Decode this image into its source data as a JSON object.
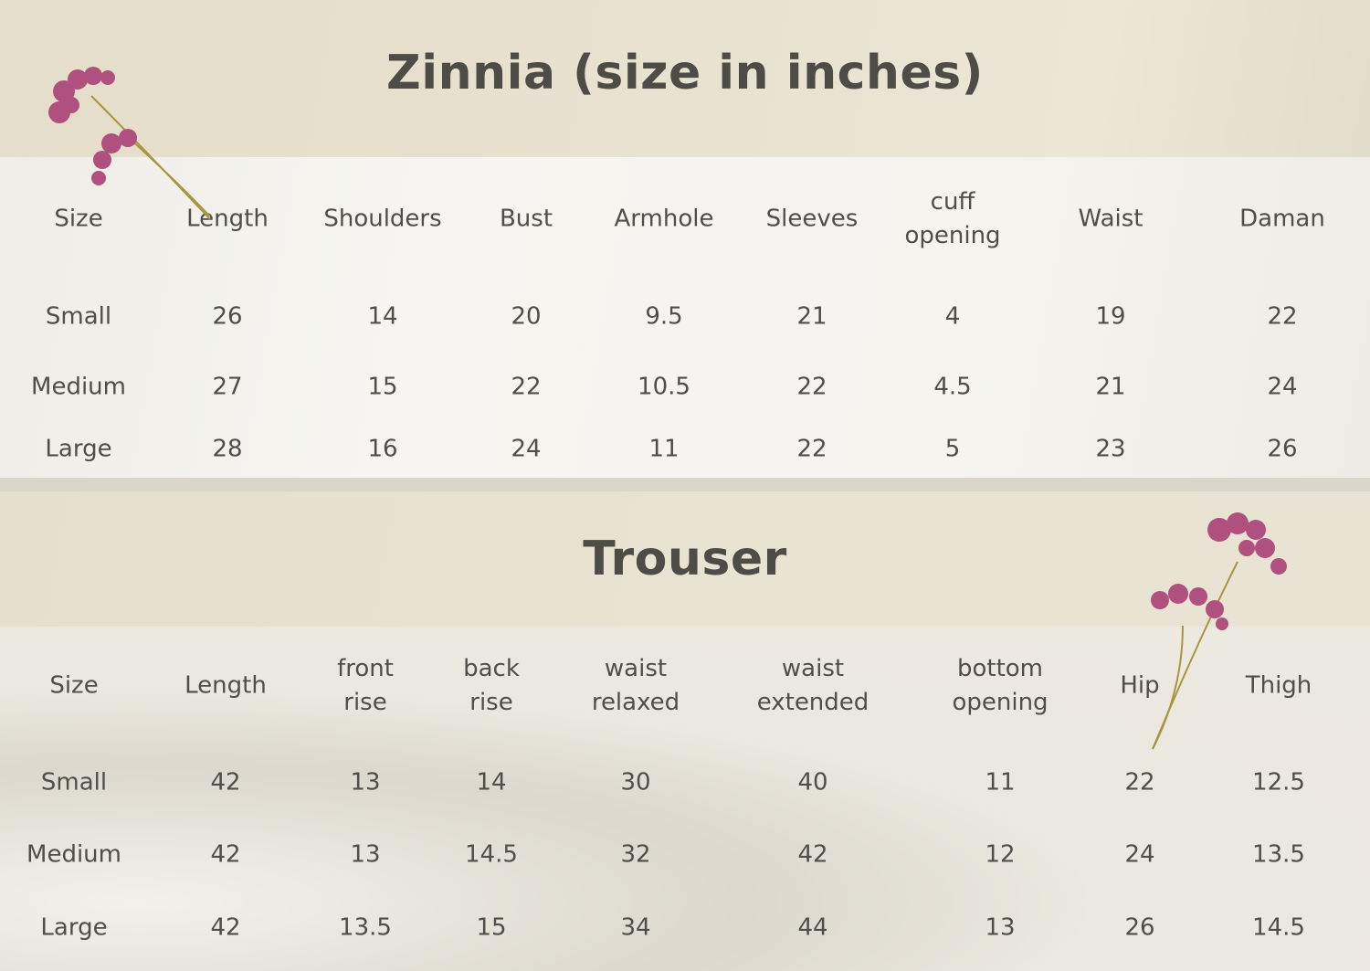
{
  "top_table": {
    "title": "Zinnia (size in inches)",
    "headers": [
      "Size",
      "Length",
      "Shoulders",
      "Bust",
      "Armhole",
      "Sleeves",
      "cuff\nopening",
      "Waist",
      "Daman"
    ],
    "rows": [
      [
        "Small",
        "26",
        "14",
        "20",
        "9.5",
        "21",
        "4",
        "19",
        "22"
      ],
      [
        "Medium",
        "27",
        "15",
        "22",
        "10.5",
        "22",
        "4.5",
        "21",
        "24"
      ],
      [
        "Large",
        "28",
        "16",
        "24",
        "11",
        "22",
        "5",
        "23",
        "26"
      ]
    ]
  },
  "bottom_table": {
    "title": "Trouser",
    "headers": [
      "Size",
      "Length",
      "front\nrise",
      "back\nrise",
      "waist\nrelaxed",
      "waist\nextended",
      "bottom\nopening",
      "Hip",
      "Thigh"
    ],
    "rows": [
      [
        "Small",
        "42",
        "13",
        "14",
        "30",
        "40",
        "11",
        "22",
        "12.5"
      ],
      [
        "Medium",
        "42",
        "13",
        "14.5",
        "32",
        "42",
        "12",
        "24",
        "13.5"
      ],
      [
        "Large",
        "42",
        "13.5",
        "15",
        "34",
        "44",
        "13",
        "26",
        "14.5"
      ]
    ]
  },
  "colors": {
    "text": "#4f4e49",
    "title_band": "#e6dfcc",
    "table_band": "#f4f3ee",
    "flower": "#b0507e"
  }
}
